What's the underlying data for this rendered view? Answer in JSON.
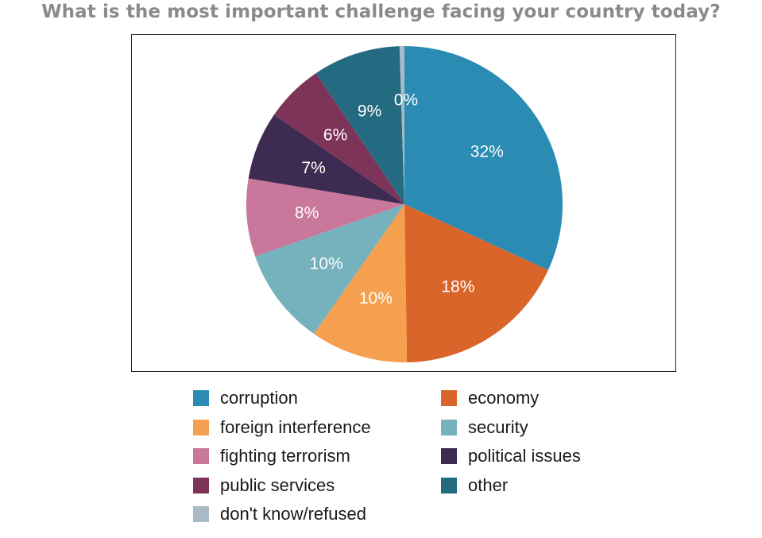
{
  "chart_data": {
    "type": "pie",
    "title": "What is the most important challenge facing your country today?",
    "slices": [
      {
        "name": "corruption",
        "value": 32,
        "label": "32%",
        "color": "#2b8cb3"
      },
      {
        "name": "economy",
        "value": 18,
        "label": "18%",
        "color": "#d9652b"
      },
      {
        "name": "foreign interference",
        "value": 10,
        "label": "10%",
        "color": "#f4a04f"
      },
      {
        "name": "security",
        "value": 10,
        "label": "10%",
        "color": "#76b2bd"
      },
      {
        "name": "fighting terrorism",
        "value": 8,
        "label": "8%",
        "color": "#c9779b"
      },
      {
        "name": "political issues",
        "value": 7,
        "label": "7%",
        "color": "#3d2b52"
      },
      {
        "name": "public services",
        "value": 6,
        "label": "6%",
        "color": "#7e3458"
      },
      {
        "name": "other",
        "value": 9,
        "label": "9%",
        "color": "#246a80"
      },
      {
        "name": "don't know/refused",
        "value": 0.5,
        "label": "0%",
        "color": "#a7bac6"
      }
    ],
    "legend": {
      "placement": "bottom",
      "columns": [
        [
          "corruption",
          "foreign interference",
          "fighting terrorism",
          "public services",
          "don't know/refused"
        ],
        [
          "economy",
          "security",
          "political issues",
          "other"
        ]
      ]
    }
  }
}
